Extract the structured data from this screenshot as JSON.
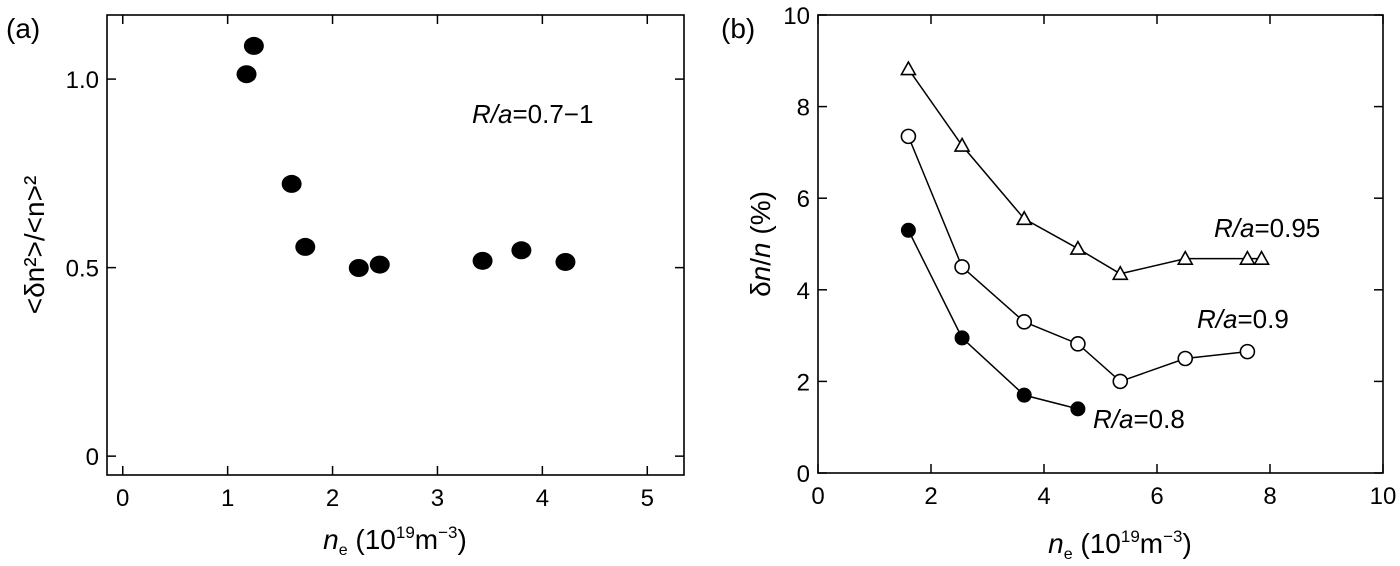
{
  "chart_data": [
    {
      "type": "scatter",
      "panel_label": "(a)",
      "annotation": {
        "italic": "R/a",
        "text": "=0.7−1"
      },
      "xlabel": {
        "symbol": "n",
        "sub": "e",
        "units_pre": " (10",
        "units_sup": "19",
        "units_mid": "m",
        "units_sup2": "−3",
        "units_post": ")"
      },
      "ylabel": "<δn²>/<n>²",
      "xlim": [
        -0.15,
        5.35
      ],
      "ylim": [
        -0.05,
        1.17
      ],
      "xticks": [
        0,
        1,
        2,
        3,
        4,
        5
      ],
      "xtick_labels": [
        "0",
        "1",
        "2",
        "3",
        "4",
        "5"
      ],
      "yticks": [
        0,
        0.5,
        1.0
      ],
      "ytick_labels": [
        "0",
        "0.5",
        "1.0"
      ],
      "grid": false,
      "series": [
        {
          "marker": "filled-circle",
          "x": [
            1.18,
            1.25,
            1.61,
            1.74,
            2.25,
            2.45,
            3.43,
            3.8,
            4.22
          ],
          "y": [
            1.013,
            1.088,
            0.722,
            0.555,
            0.499,
            0.508,
            0.518,
            0.546,
            0.515
          ]
        }
      ]
    },
    {
      "type": "line",
      "panel_label": "(b)",
      "xlabel": {
        "symbol": "n",
        "sub": "e",
        "units_pre": " (10",
        "units_sup": "19",
        "units_mid": "m",
        "units_sup2": "−3",
        "units_post": ")"
      },
      "ylabel": {
        "pre": "δ",
        "italic1": "n",
        "mid": "/",
        "italic2": "n",
        "post": " (%)"
      },
      "xlim": [
        0,
        10
      ],
      "ylim": [
        0,
        10
      ],
      "xticks": [
        0,
        2,
        4,
        6,
        8,
        10
      ],
      "xtick_labels": [
        "0",
        "2",
        "4",
        "6",
        "8",
        "10"
      ],
      "yticks": [
        0,
        2,
        4,
        6,
        8,
        10
      ],
      "ytick_labels": [
        "0",
        "2",
        "4",
        "6",
        "8",
        "10"
      ],
      "grid": false,
      "series": [
        {
          "label": {
            "italic": "R/a",
            "text": "=0.95"
          },
          "marker": "open-triangle",
          "x": [
            1.6,
            2.55,
            3.65,
            4.6,
            5.35,
            6.5,
            7.6,
            7.85
          ],
          "y": [
            8.82,
            7.15,
            5.55,
            4.9,
            4.35,
            4.68,
            4.68,
            4.68
          ]
        },
        {
          "label": {
            "italic": "R/a",
            "text": "=0.9"
          },
          "marker": "open-circle",
          "x": [
            1.6,
            2.55,
            3.65,
            4.6,
            5.35,
            6.5,
            7.6
          ],
          "y": [
            7.35,
            4.5,
            3.3,
            2.82,
            2.0,
            2.5,
            2.65
          ]
        },
        {
          "label": {
            "italic": "R/a",
            "text": "=0.8"
          },
          "marker": "filled-circle",
          "x": [
            1.6,
            2.55,
            3.65,
            4.6
          ],
          "y": [
            5.3,
            2.95,
            1.7,
            1.4
          ]
        }
      ]
    }
  ]
}
